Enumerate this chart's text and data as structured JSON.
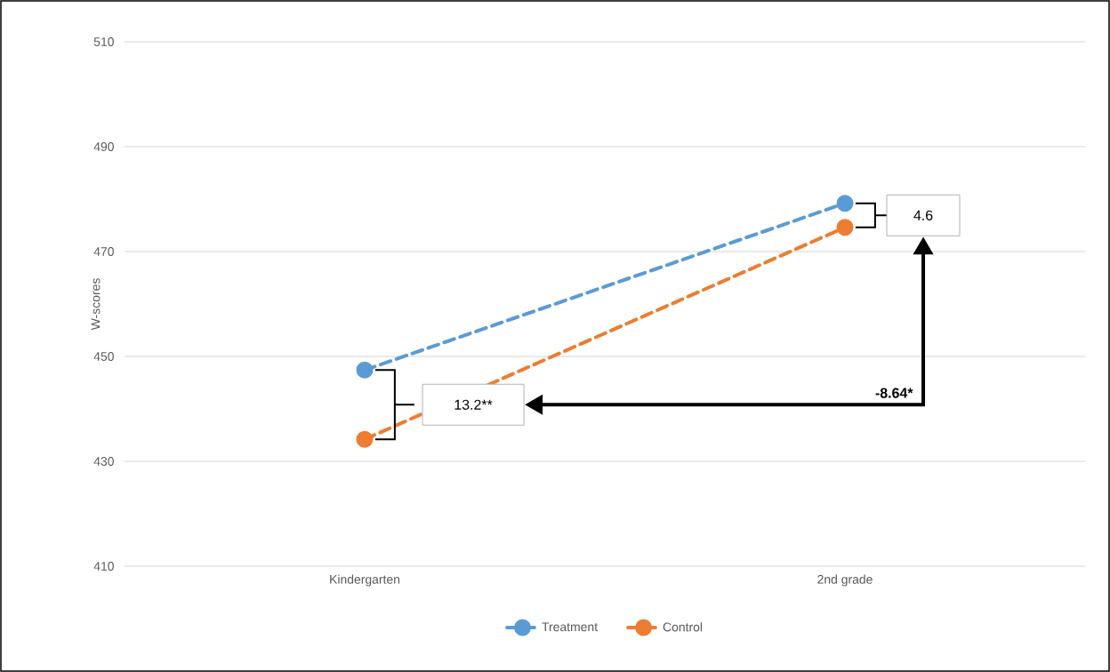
{
  "chart_data": {
    "type": "line",
    "ylabel": "W-scores",
    "categories": [
      "Kindergarten",
      "2nd grade"
    ],
    "series": [
      {
        "name": "Treatment",
        "color": "#5b9bd5",
        "values": [
          447.4,
          479.2
        ]
      },
      {
        "name": "Control",
        "color": "#ed7d31",
        "values": [
          434.2,
          474.6
        ]
      }
    ],
    "ylim": [
      410,
      510
    ],
    "yticks": [
      410,
      430,
      450,
      470,
      490,
      510
    ],
    "grid": "y",
    "legend": "bottom",
    "marker": "circle",
    "line_style": "dashed",
    "annotations": [
      "13.2**",
      "4.6",
      "-8.64*"
    ]
  }
}
